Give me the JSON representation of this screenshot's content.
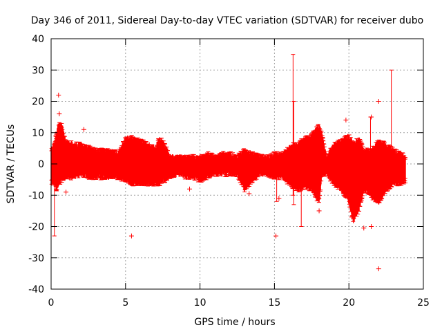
{
  "chart_data": {
    "type": "scatter",
    "title": "Day 346 of 2011, Sidereal Day-to-day VTEC variation (SDTVAR) for receiver dubo",
    "xlabel": "GPS time / hours",
    "ylabel": "SDTVAR / TECUs",
    "xlim": [
      0,
      25
    ],
    "ylim": [
      -40,
      40
    ],
    "xticks": [
      0,
      5,
      10,
      15,
      20,
      25
    ],
    "yticks": [
      -40,
      -30,
      -20,
      -10,
      0,
      10,
      20,
      30,
      40
    ],
    "grid": true,
    "marker": "+",
    "color": "#ff0000",
    "envelope": {
      "hours": [
        0,
        0.2,
        0.35,
        0.5,
        0.7,
        1.0,
        1.5,
        2.0,
        2.5,
        3.0,
        3.5,
        4.0,
        4.5,
        5.0,
        5.5,
        6.0,
        6.5,
        7.0,
        7.3,
        7.6,
        8.0,
        8.5,
        9.0,
        9.5,
        10.0,
        10.5,
        11.0,
        11.5,
        12.0,
        12.5,
        13.0,
        13.5,
        14.0,
        14.5,
        15.0,
        15.5,
        16.0,
        16.3,
        16.6,
        17.0,
        17.5,
        18.0,
        18.2,
        18.5,
        19.0,
        19.5,
        20.0,
        20.3,
        20.7,
        21.0,
        21.5,
        22.0,
        22.5,
        23.0,
        23.5,
        23.8
      ],
      "upper": [
        5,
        6,
        9,
        13,
        12,
        7,
        6,
        6,
        5,
        4,
        4,
        4,
        3,
        8,
        8,
        7,
        6,
        5,
        8,
        6,
        2,
        2,
        2,
        2,
        2,
        3,
        2,
        3,
        3,
        2,
        4,
        3,
        2,
        2,
        3,
        3,
        5,
        6,
        6,
        8,
        9,
        12,
        9,
        2,
        6,
        7,
        9,
        6,
        8,
        4,
        4,
        7,
        6,
        4,
        3,
        2
      ],
      "lower": [
        -6,
        -6,
        -8,
        -6,
        -5,
        -4,
        -4,
        -3,
        -4,
        -4,
        -4,
        -4,
        -4,
        -5,
        -6,
        -6,
        -6,
        -6,
        -6,
        -5,
        -4,
        -3,
        -4,
        -4,
        -5,
        -4,
        -3,
        -3,
        -3,
        -3,
        -8,
        -5,
        -3,
        -3,
        -4,
        -4,
        -6,
        -7,
        -8,
        -7,
        -8,
        -12,
        -3,
        -3,
        -6,
        -8,
        -12,
        -18,
        -14,
        -8,
        -10,
        -12,
        -8,
        -6,
        -6,
        -5
      ]
    },
    "outlier_bars": [
      {
        "x": 0.22,
        "low": -23,
        "high": 3
      },
      {
        "x": 16.25,
        "low": -10,
        "high": 35
      },
      {
        "x": 16.3,
        "low": -13,
        "high": 20
      },
      {
        "x": 16.8,
        "low": -20,
        "high": 8
      },
      {
        "x": 22.85,
        "low": -5,
        "high": 30
      },
      {
        "x": 15.15,
        "low": -12,
        "high": 0
      },
      {
        "x": 21.45,
        "low": 0,
        "high": 15
      }
    ],
    "outlier_points": [
      {
        "x": 0.5,
        "y": 22
      },
      {
        "x": 2.2,
        "y": 11
      },
      {
        "x": 5.4,
        "y": -23
      },
      {
        "x": 15.1,
        "y": -23
      },
      {
        "x": 22.0,
        "y": 20
      },
      {
        "x": 21.5,
        "y": -20
      },
      {
        "x": 21.0,
        "y": -20.5
      },
      {
        "x": 22.0,
        "y": -33.5
      },
      {
        "x": 0.55,
        "y": 16
      },
      {
        "x": 1.0,
        "y": -9
      },
      {
        "x": 9.3,
        "y": -8
      },
      {
        "x": 13.3,
        "y": -9.5
      },
      {
        "x": 15.3,
        "y": -11
      },
      {
        "x": 19.8,
        "y": 14
      },
      {
        "x": 21.5,
        "y": 15
      },
      {
        "x": 18.0,
        "y": -15
      },
      {
        "x": 20.2,
        "y": -17
      }
    ]
  }
}
